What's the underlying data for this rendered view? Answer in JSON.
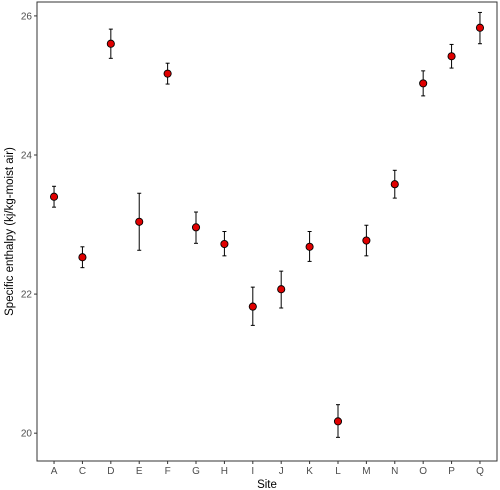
{
  "chart_data": {
    "type": "scatter",
    "xlabel": "Site",
    "ylabel": "Specific enthalpy (kj/kg-moist air)",
    "categories": [
      "A",
      "C",
      "D",
      "E",
      "F",
      "G",
      "H",
      "I",
      "J",
      "K",
      "L",
      "M",
      "N",
      "O",
      "P",
      "Q"
    ],
    "series": [
      {
        "values": [
          23.4,
          22.53,
          25.6,
          23.04,
          25.17,
          22.96,
          22.72,
          21.82,
          22.07,
          22.68,
          20.17,
          22.77,
          23.58,
          25.03,
          25.42,
          25.83
        ],
        "err_low": [
          23.25,
          22.38,
          25.39,
          22.63,
          25.02,
          22.73,
          22.55,
          21.55,
          21.8,
          22.47,
          19.94,
          22.55,
          23.38,
          24.85,
          25.25,
          25.6
        ],
        "err_high": [
          23.55,
          22.68,
          25.81,
          23.45,
          25.32,
          23.18,
          22.9,
          22.1,
          22.33,
          22.9,
          20.41,
          22.99,
          23.78,
          25.21,
          25.59,
          26.05
        ]
      }
    ],
    "ylim": [
      19.6,
      26.2
    ],
    "yticks": [
      20,
      22,
      24,
      26
    ],
    "grid": false,
    "colors": {
      "marker_fill": "#e00000",
      "marker_stroke": "#000000",
      "errorbar": "#000000",
      "axis_text": "#4d4d4d",
      "panel_border": "#333333"
    }
  }
}
